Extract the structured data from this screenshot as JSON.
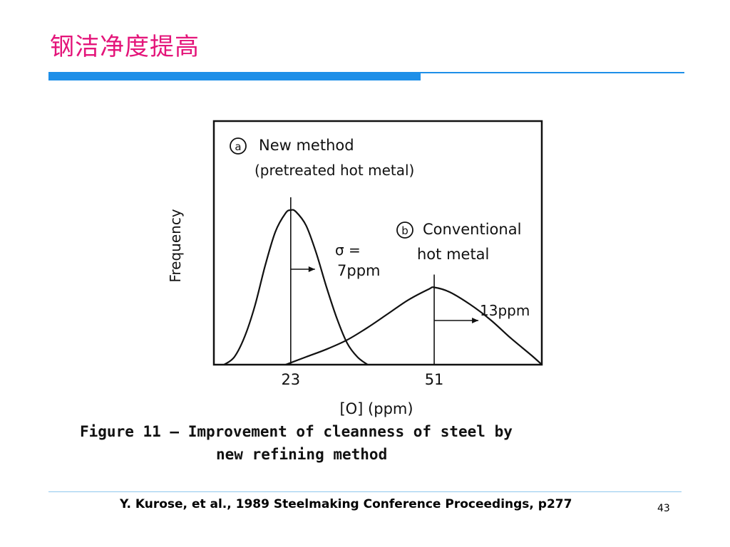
{
  "slide": {
    "title": "钢洁净度提高",
    "citation": "Y. Kurose, et al., 1989 Steelmaking Conference Proceedings, p277",
    "page_number": "43"
  },
  "colors": {
    "title": "#e4157a",
    "accent_bar": "#1e8fe8",
    "footer_line": "#8fc7ee"
  },
  "chart_data": {
    "type": "line",
    "ylabel": "Frequency",
    "xlabel": "[O] (ppm)",
    "x_ticks": [
      "23",
      "51"
    ],
    "xlim": [
      8,
      72
    ],
    "series": [
      {
        "name": "New method (pretreated hot metal)",
        "marker": "a",
        "name_line1": "New method",
        "name_line2": "(pretreated hot metal)",
        "mean": 23,
        "sigma_label_line1": "σ =",
        "sigma_label_line2": "7ppm",
        "x": [
          10,
          12,
          14,
          16,
          18,
          20,
          22,
          23,
          24,
          26,
          28,
          30,
          32,
          34,
          36,
          38
        ],
        "y": [
          0.0,
          0.05,
          0.18,
          0.38,
          0.64,
          0.86,
          0.98,
          1.0,
          0.99,
          0.9,
          0.72,
          0.5,
          0.3,
          0.14,
          0.05,
          0.0
        ]
      },
      {
        "name": "Conventional hot metal",
        "marker": "b",
        "name_line1": "Conventional",
        "name_line2": "hot metal",
        "mean": 51,
        "sigma_label_line1": "13ppm",
        "x": [
          22,
          26,
          30,
          34,
          38,
          42,
          46,
          50,
          51,
          54,
          58,
          62,
          66,
          70,
          72
        ],
        "y": [
          0.0,
          0.05,
          0.1,
          0.16,
          0.24,
          0.33,
          0.42,
          0.49,
          0.5,
          0.47,
          0.39,
          0.29,
          0.17,
          0.06,
          0.0
        ]
      }
    ],
    "caption_line1": "Figure 11 — Improvement of cleanness of steel by",
    "caption_line2": "new refining method"
  }
}
